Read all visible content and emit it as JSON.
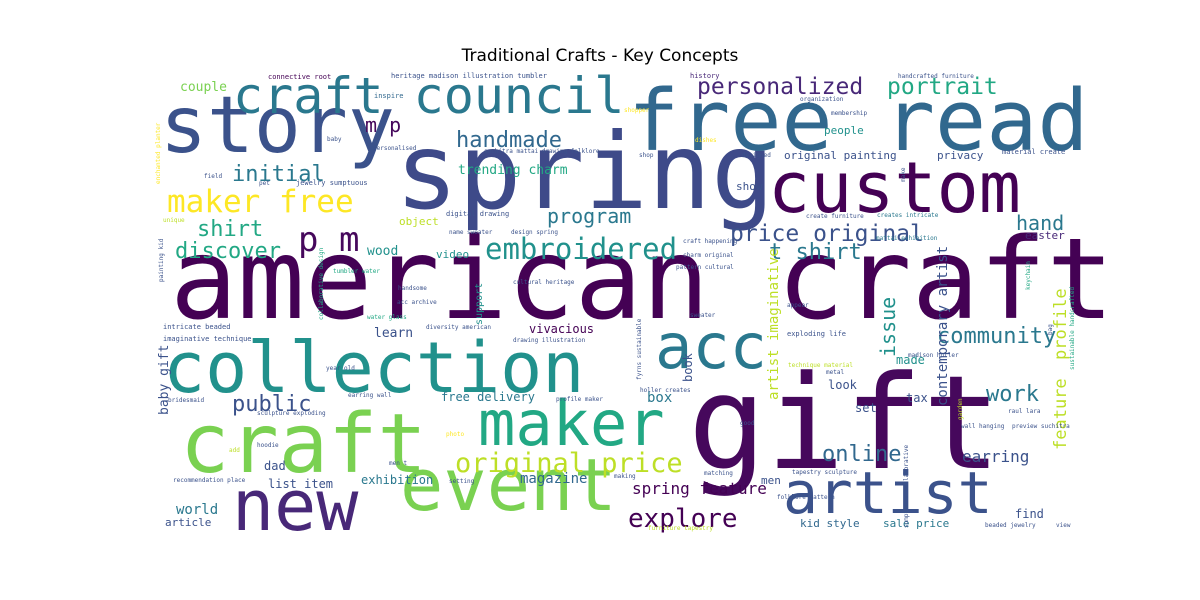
{
  "chart_data": {
    "type": "wordcloud",
    "title": "Traditional Crafts - Key Concepts",
    "words": [
      {
        "text": "american craft",
        "weight": 100,
        "color": "#440154"
      },
      {
        "text": "spring",
        "weight": 98,
        "color": "#3e4a89"
      },
      {
        "text": "gift",
        "weight": 96,
        "color": "#46085c"
      },
      {
        "text": "free read",
        "weight": 90,
        "color": "#31688e"
      },
      {
        "text": "story",
        "weight": 85,
        "color": "#3b528b"
      },
      {
        "text": "custom",
        "weight": 82,
        "color": "#440154"
      },
      {
        "text": "collection",
        "weight": 80,
        "color": "#21918c"
      },
      {
        "text": "craft",
        "weight": 78,
        "color": "#7ad151"
      },
      {
        "text": "event",
        "weight": 76,
        "color": "#7ad151"
      },
      {
        "text": "new",
        "weight": 70,
        "color": "#482878"
      },
      {
        "text": "artist",
        "weight": 62,
        "color": "#3b528b"
      },
      {
        "text": "maker",
        "weight": 60,
        "color": "#22a884"
      },
      {
        "text": "acc",
        "weight": 58,
        "color": "#2a788e"
      },
      {
        "text": "craft council",
        "weight": 52,
        "color": "#2a788e"
      },
      {
        "text": "p m",
        "weight": 34,
        "color": "#46085c"
      },
      {
        "text": "embroidered",
        "weight": 32,
        "color": "#21918c"
      },
      {
        "text": "maker free",
        "weight": 30,
        "color": "#fde725"
      },
      {
        "text": "original price",
        "weight": 29,
        "color": "#bddf26"
      },
      {
        "text": "explore",
        "weight": 27,
        "color": "#440154"
      },
      {
        "text": "personalized",
        "weight": 25,
        "color": "#482878"
      },
      {
        "text": "portrait",
        "weight": 25,
        "color": "#22a884"
      },
      {
        "text": "price original",
        "weight": 24,
        "color": "#3b528b"
      },
      {
        "text": "handmade",
        "weight": 22,
        "color": "#31688e"
      },
      {
        "text": "initial",
        "weight": 22,
        "color": "#2a788e"
      },
      {
        "text": "shirt",
        "weight": 22,
        "color": "#22a884"
      },
      {
        "text": "discover",
        "weight": 22,
        "color": "#22a884"
      },
      {
        "text": "public",
        "weight": 22,
        "color": "#3b528b"
      },
      {
        "text": "t shirt",
        "weight": 22,
        "color": "#2a788e"
      },
      {
        "text": "community",
        "weight": 22,
        "color": "#2a788e"
      },
      {
        "text": "work",
        "weight": 22,
        "color": "#2a788e"
      },
      {
        "text": "online",
        "weight": 22,
        "color": "#31688e"
      },
      {
        "text": "m p",
        "weight": 20,
        "color": "#46085c"
      },
      {
        "text": "program",
        "weight": 20,
        "color": "#2a788e"
      },
      {
        "text": "hand",
        "weight": 20,
        "color": "#2a788e"
      },
      {
        "text": "issue",
        "weight": 20,
        "color": "#21918c"
      },
      {
        "text": "profile",
        "weight": 18,
        "color": "#bddf26"
      },
      {
        "text": "feature",
        "weight": 18,
        "color": "#bddf26"
      },
      {
        "text": "spring feature",
        "weight": 16,
        "color": "#440154"
      },
      {
        "text": "earring",
        "weight": 16,
        "color": "#3b528b"
      },
      {
        "text": "artist imaginative",
        "weight": 14,
        "color": "#bddf26"
      },
      {
        "text": "contemporary artist",
        "weight": 14,
        "color": "#3b528b"
      },
      {
        "text": "magazine",
        "weight": 14,
        "color": "#31688e"
      },
      {
        "text": "world",
        "weight": 14,
        "color": "#2a788e"
      },
      {
        "text": "box",
        "weight": 14,
        "color": "#2a788e"
      },
      {
        "text": "couple",
        "weight": 13,
        "color": "#7ad151"
      },
      {
        "text": "trending charm",
        "weight": 13,
        "color": "#22a884"
      },
      {
        "text": "baby gift",
        "weight": 13,
        "color": "#3b528b"
      },
      {
        "text": "wood",
        "weight": 13,
        "color": "#21918c"
      },
      {
        "text": "learn",
        "weight": 13,
        "color": "#3b528b"
      },
      {
        "text": "vivacious",
        "weight": 12,
        "color": "#440154"
      },
      {
        "text": "dad",
        "weight": 12,
        "color": "#3b528b"
      },
      {
        "text": "list item",
        "weight": 12,
        "color": "#3b528b"
      },
      {
        "text": "exhibition",
        "weight": 12,
        "color": "#2a788e"
      },
      {
        "text": "free delivery",
        "weight": 12,
        "color": "#2a788e"
      },
      {
        "text": "book",
        "weight": 12,
        "color": "#3b528b"
      },
      {
        "text": "set",
        "weight": 12,
        "color": "#3b528b"
      },
      {
        "text": "look",
        "weight": 12,
        "color": "#3b528b"
      },
      {
        "text": "made",
        "weight": 12,
        "color": "#21918c"
      },
      {
        "text": "tax",
        "weight": 12,
        "color": "#3b528b"
      },
      {
        "text": "find",
        "weight": 12,
        "color": "#3b528b"
      },
      {
        "text": "men",
        "weight": 11,
        "color": "#3b528b"
      },
      {
        "text": "article",
        "weight": 11,
        "color": "#3b528b"
      },
      {
        "text": "kid style",
        "weight": 11,
        "color": "#31688e"
      },
      {
        "text": "sale price",
        "weight": 11,
        "color": "#2a788e"
      },
      {
        "text": "original painting",
        "weight": 11,
        "color": "#3b528b"
      },
      {
        "text": "privacy",
        "weight": 11,
        "color": "#3b528b"
      },
      {
        "text": "people",
        "weight": 11,
        "color": "#21918c"
      },
      {
        "text": "show",
        "weight": 11,
        "color": "#3b528b"
      },
      {
        "text": "easter",
        "weight": 11,
        "color": "#482878"
      },
      {
        "text": "video",
        "weight": 11,
        "color": "#21918c"
      },
      {
        "text": "object",
        "weight": 11,
        "color": "#bddf26"
      },
      {
        "text": "support",
        "weight": 10,
        "color": "#21918c"
      },
      {
        "text": "connective root",
        "weight": 7,
        "color": "#440154"
      },
      {
        "text": "inspire",
        "weight": 7,
        "color": "#31688e"
      },
      {
        "text": "heritage madison illustration tumbler",
        "weight": 7,
        "color": "#3b528b"
      },
      {
        "text": "history",
        "weight": 7,
        "color": "#482878"
      },
      {
        "text": "handcrafted furniture",
        "weight": 6,
        "color": "#3b528b"
      },
      {
        "text": "organization",
        "weight": 6,
        "color": "#3b528b"
      },
      {
        "text": "membership",
        "weight": 6,
        "color": "#3b528b"
      },
      {
        "text": "shopper",
        "weight": 6,
        "color": "#fde725"
      },
      {
        "text": "baby",
        "weight": 6,
        "color": "#3b528b"
      },
      {
        "text": "personalised",
        "weight": 6,
        "color": "#3b528b"
      },
      {
        "text": "suchitra mattai drawing folklore",
        "weight": 6,
        "color": "#3b528b"
      },
      {
        "text": "shop",
        "weight": 6,
        "color": "#3b528b"
      },
      {
        "text": "designed",
        "weight": 6,
        "color": "#3b528b"
      },
      {
        "text": "material create",
        "weight": 7,
        "color": "#3b528b"
      },
      {
        "text": "field",
        "weight": 6,
        "color": "#3b528b"
      },
      {
        "text": "pet",
        "weight": 6,
        "color": "#3b528b"
      },
      {
        "text": "jewelry sumptuous",
        "weight": 7,
        "color": "#3b528b"
      },
      {
        "text": "enchanted planter",
        "weight": 6,
        "color": "#fde725"
      },
      {
        "text": "unique",
        "weight": 6,
        "color": "#bddf26"
      },
      {
        "text": "digital drawing",
        "weight": 7,
        "color": "#3b528b"
      },
      {
        "text": "name sweater",
        "weight": 6,
        "color": "#3b528b"
      },
      {
        "text": "design spring",
        "weight": 6,
        "color": "#3b528b"
      },
      {
        "text": "create furniture",
        "weight": 6,
        "color": "#3b528b"
      },
      {
        "text": "creates intricate",
        "weight": 6,
        "color": "#2a788e"
      },
      {
        "text": "mattai exhibition",
        "weight": 6,
        "color": "#2a788e"
      },
      {
        "text": "craft happening",
        "weight": 6,
        "color": "#3b528b"
      },
      {
        "text": "charm original",
        "weight": 6,
        "color": "#3b528b"
      },
      {
        "text": "pattern cultural",
        "weight": 6,
        "color": "#3b528b"
      },
      {
        "text": "cultural heritage",
        "weight": 6,
        "color": "#3b528b"
      },
      {
        "text": "handsome",
        "weight": 6,
        "color": "#3b528b"
      },
      {
        "text": "acc archive",
        "weight": 6,
        "color": "#3b528b"
      },
      {
        "text": "water glass",
        "weight": 6,
        "color": "#22a884"
      },
      {
        "text": "tumbler water",
        "weight": 6,
        "color": "#22a884"
      },
      {
        "text": "collaborative design",
        "weight": 6,
        "color": "#22a884"
      },
      {
        "text": "painting kid",
        "weight": 6,
        "color": "#3b528b"
      },
      {
        "text": "intricate beaded",
        "weight": 7,
        "color": "#3b528b"
      },
      {
        "text": "imaginative technique",
        "weight": 7,
        "color": "#3b528b"
      },
      {
        "text": "diversity american",
        "weight": 6,
        "color": "#3b528b"
      },
      {
        "text": "drawing illustration",
        "weight": 6,
        "color": "#3b528b"
      },
      {
        "text": "fyrns sustainable",
        "weight": 6,
        "color": "#3b528b"
      },
      {
        "text": "holler creates",
        "weight": 6,
        "color": "#3b528b"
      },
      {
        "text": "exploding life",
        "weight": 7,
        "color": "#3b528b"
      },
      {
        "text": "madison holler",
        "weight": 6,
        "color": "#3b528b"
      },
      {
        "text": "technique material",
        "weight": 6,
        "color": "#bddf26"
      },
      {
        "text": "metal",
        "weight": 6,
        "color": "#3b528b"
      },
      {
        "text": "appear",
        "weight": 6,
        "color": "#3b528b"
      },
      {
        "text": "year old",
        "weight": 6,
        "color": "#3b528b"
      },
      {
        "text": "earring wall",
        "weight": 6,
        "color": "#3b528b"
      },
      {
        "text": "sculpture exploding",
        "weight": 6,
        "color": "#3b528b"
      },
      {
        "text": "bridesmaid",
        "weight": 6,
        "color": "#3b528b"
      },
      {
        "text": "profile maker",
        "weight": 6,
        "color": "#3b528b"
      },
      {
        "text": "raul lara",
        "weight": 6,
        "color": "#3b528b"
      },
      {
        "text": "wall hanging",
        "weight": 6,
        "color": "#3b528b"
      },
      {
        "text": "preview suchitra",
        "weight": 6,
        "color": "#3b528b"
      },
      {
        "text": "good",
        "weight": 6,
        "color": "#3b528b"
      },
      {
        "text": "hoodie",
        "weight": 6,
        "color": "#3b528b"
      },
      {
        "text": "photo",
        "weight": 6,
        "color": "#fde725"
      },
      {
        "text": "add",
        "weight": 6,
        "color": "#bddf26"
      },
      {
        "text": "men t",
        "weight": 6,
        "color": "#3b528b"
      },
      {
        "text": "recommendation place",
        "weight": 6,
        "color": "#3b528b"
      },
      {
        "text": "setting",
        "weight": 6,
        "color": "#3b528b"
      },
      {
        "text": "making",
        "weight": 6,
        "color": "#3b528b"
      },
      {
        "text": "tapestry sculpture",
        "weight": 6,
        "color": "#3b528b"
      },
      {
        "text": "folklore pattern",
        "weight": 6,
        "color": "#3b528b"
      },
      {
        "text": "furniture tapestry",
        "weight": 6,
        "color": "#bddf26"
      },
      {
        "text": "sumptuous collaborative",
        "weight": 6,
        "color": "#3b528b"
      },
      {
        "text": "beaded jewelry",
        "weight": 6,
        "color": "#3b528b"
      },
      {
        "text": "view",
        "weight": 6,
        "color": "#3b528b"
      },
      {
        "text": "sweater",
        "weight": 6,
        "color": "#3b528b"
      },
      {
        "text": "matching",
        "weight": 6,
        "color": "#3b528b"
      },
      {
        "text": "keychain",
        "weight": 6,
        "color": "#22a884"
      },
      {
        "text": "bag",
        "weight": 6,
        "color": "#3b528b"
      },
      {
        "text": "sustainable handcrafted",
        "weight": 6,
        "color": "#22a884"
      },
      {
        "text": "garden",
        "weight": 6,
        "color": "#bddf26"
      },
      {
        "text": "make",
        "weight": 6,
        "color": "#3b528b"
      },
      {
        "text": "dishes",
        "weight": 6,
        "color": "#fde725"
      }
    ]
  }
}
